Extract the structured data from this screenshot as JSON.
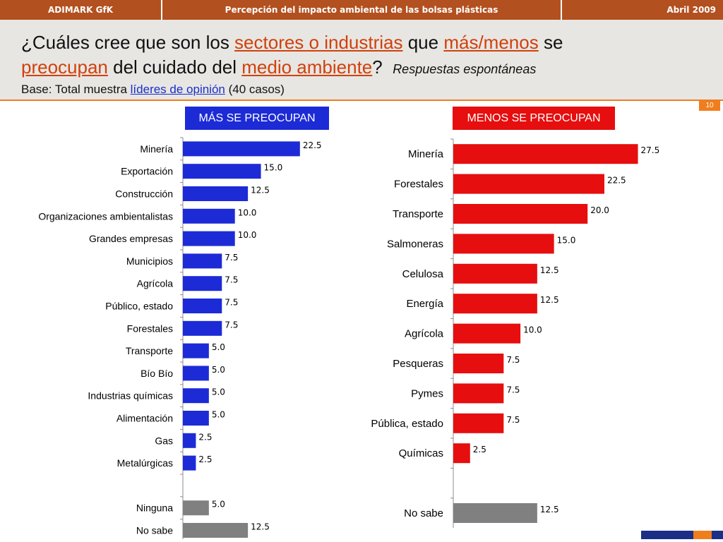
{
  "header": {
    "left": "ADIMARK GfK",
    "center": "Percepción del impacto ambiental de las bolsas plásticas",
    "right": "Abril 2009"
  },
  "title": {
    "line1": {
      "t1": "¿Cuáles cree que son los ",
      "h1": "sectores o industrias",
      "t2": " que ",
      "h2": "más/menos",
      "t3": " se"
    },
    "line2": {
      "h1": "preocupan",
      "t1": " del cuidado del ",
      "h2": "medio ambiente",
      "t2": "?",
      "italic": "Respuestas espontáneas"
    },
    "base": {
      "t1": "Base: Total muestra ",
      "h1": "líderes de opinión",
      "t2": " (40 casos)"
    }
  },
  "page_number": "10",
  "colors": {
    "header_bar": "#b3501f",
    "accent": "#f07d1e",
    "mas": "#1c2bd6",
    "menos": "#e60e0e",
    "other": "#808080"
  },
  "chart_data": [
    {
      "type": "bar",
      "orientation": "horizontal",
      "title": "MÁS SE PREOCUPAN",
      "categories": [
        "Minería",
        "Exportación",
        "Construcción",
        "Organizaciones ambientalistas",
        "Grandes empresas",
        "Municipios",
        "Agrícola",
        "Público, estado",
        "Forestales",
        "Transporte",
        "Bío Bío",
        "Industrias químicas",
        "Alimentación",
        "Gas",
        "Metalúrgicas",
        "",
        "Ninguna",
        "No sabe"
      ],
      "values": [
        22.5,
        15.0,
        12.5,
        10.0,
        10.0,
        7.5,
        7.5,
        7.5,
        7.5,
        5.0,
        5.0,
        5.0,
        5.0,
        2.5,
        2.5,
        null,
        5.0,
        12.5
      ],
      "labels": [
        "22.5",
        "15.0",
        "12.5",
        "10.0",
        "10.0",
        "7.5",
        "7.5",
        "7.5",
        "7.5",
        "5.0",
        "5.0",
        "5.0",
        "5.0",
        "2.5",
        "2.5",
        "",
        "5.0",
        "12.5"
      ],
      "kinds": [
        "main",
        "main",
        "main",
        "main",
        "main",
        "main",
        "main",
        "main",
        "main",
        "main",
        "main",
        "main",
        "main",
        "main",
        "main",
        "gap",
        "other",
        "other"
      ]
    },
    {
      "type": "bar",
      "orientation": "horizontal",
      "title": "MENOS SE PREOCUPAN",
      "categories": [
        "Minería",
        "Forestales",
        "Transporte",
        "Salmoneras",
        "Celulosa",
        "Energía",
        "Agrícola",
        "Pesqueras",
        "Pymes",
        "Pública, estado",
        "Químicas",
        "",
        "No sabe"
      ],
      "values": [
        27.5,
        22.5,
        20.0,
        15.0,
        12.5,
        12.5,
        10.0,
        7.5,
        7.5,
        7.5,
        2.5,
        null,
        12.5
      ],
      "labels": [
        "27.5",
        "22.5",
        "20.0",
        "15.0",
        "12.5",
        "12.5",
        "10.0",
        "7.5",
        "7.5",
        "7.5",
        "2.5",
        "",
        "12.5"
      ],
      "kinds": [
        "main",
        "main",
        "main",
        "main",
        "main",
        "main",
        "main",
        "main",
        "main",
        "main",
        "main",
        "gap",
        "other"
      ]
    }
  ]
}
